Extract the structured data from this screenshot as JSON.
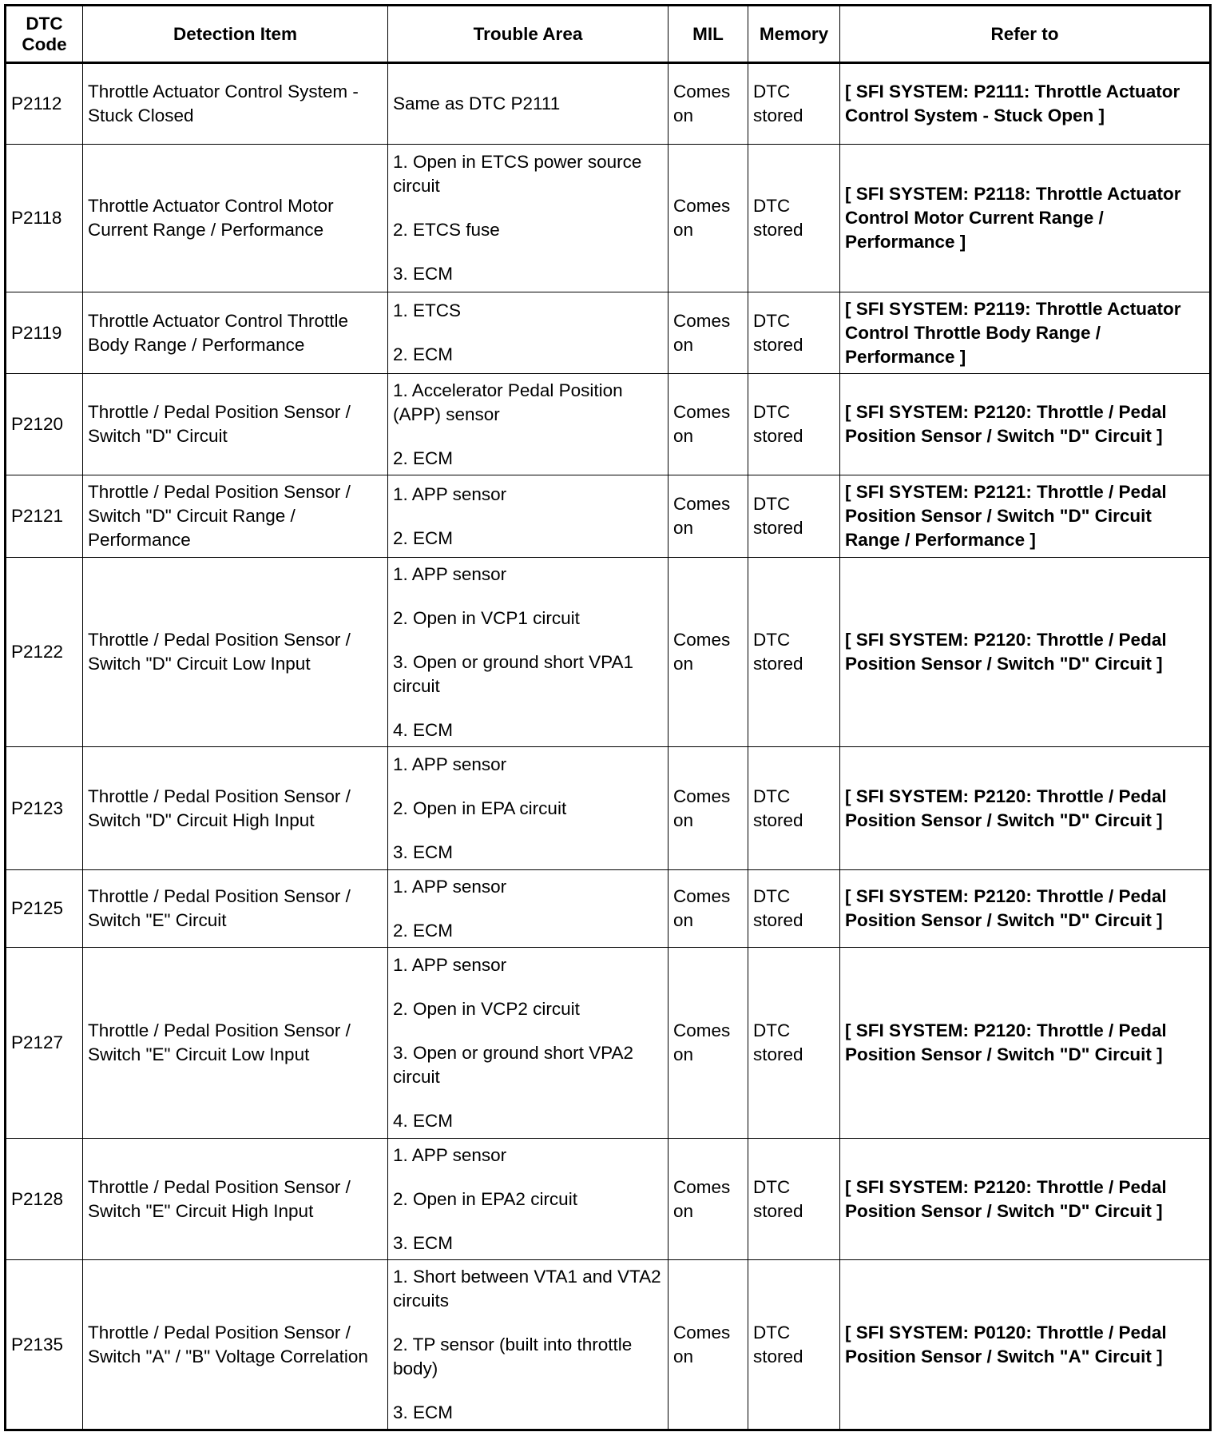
{
  "headers": [
    "DTC Code",
    "Detection Item",
    "Trouble Area",
    "MIL",
    "Memory",
    "Refer to"
  ],
  "rows": [
    {
      "code": "P2112",
      "item": "Throttle Actuator Control System - Stuck Closed",
      "trouble": [
        "Same as DTC P2111"
      ],
      "mil": "Comes on",
      "memory": "DTC stored",
      "refer": "[ SFI SYSTEM: P2111: Throttle Actuator Control System - Stuck Open ]"
    },
    {
      "code": "P2118",
      "item": "Throttle Actuator Control Motor Current Range / Performance",
      "trouble": [
        "1. Open in ETCS power source circuit",
        "2. ETCS fuse",
        "3. ECM"
      ],
      "mil": "Comes on",
      "memory": "DTC stored",
      "refer": "[ SFI SYSTEM: P2118: Throttle Actuator Control Motor Current Range / Performance ]"
    },
    {
      "code": "P2119",
      "item": "Throttle Actuator Control Throttle Body Range / Performance",
      "trouble": [
        "1. ETCS",
        "2. ECM"
      ],
      "mil": "Comes on",
      "memory": "DTC stored",
      "refer": "[ SFI SYSTEM: P2119: Throttle Actuator Control Throttle Body Range / Performance ]"
    },
    {
      "code": "P2120",
      "item": "Throttle / Pedal Position Sensor / Switch \"D\" Circuit",
      "trouble": [
        "1. Accelerator Pedal Position (APP) sensor",
        "2. ECM"
      ],
      "mil": "Comes on",
      "memory": "DTC stored",
      "refer": "[ SFI SYSTEM: P2120: Throttle / Pedal Position Sensor / Switch \"D\" Circuit ]"
    },
    {
      "code": "P2121",
      "item": "Throttle / Pedal Position Sensor / Switch \"D\" Circuit Range / Performance",
      "trouble": [
        "1. APP sensor",
        "2. ECM"
      ],
      "mil": "Comes on",
      "memory": "DTC stored",
      "refer": "[ SFI SYSTEM: P2121: Throttle / Pedal Position Sensor / Switch \"D\" Circuit Range / Performance ]"
    },
    {
      "code": "P2122",
      "item": "Throttle / Pedal Position Sensor / Switch \"D\" Circuit Low Input",
      "trouble": [
        "1. APP sensor",
        "2. Open in VCP1 circuit",
        "3. Open or ground short VPA1 circuit",
        "4. ECM"
      ],
      "mil": "Comes on",
      "memory": "DTC stored",
      "refer": "[ SFI SYSTEM: P2120: Throttle / Pedal Position Sensor / Switch \"D\" Circuit ]"
    },
    {
      "code": "P2123",
      "item": "Throttle / Pedal Position Sensor / Switch \"D\" Circuit High Input",
      "trouble": [
        "1. APP sensor",
        "2. Open in EPA circuit",
        "3. ECM"
      ],
      "mil": "Comes on",
      "memory": "DTC stored",
      "refer": "[ SFI SYSTEM: P2120: Throttle / Pedal Position Sensor / Switch \"D\" Circuit ]"
    },
    {
      "code": "P2125",
      "item": "Throttle / Pedal Position Sensor / Switch \"E\" Circuit",
      "trouble": [
        "1. APP sensor",
        "2. ECM"
      ],
      "mil": "Comes on",
      "memory": "DTC stored",
      "refer": "[ SFI SYSTEM: P2120: Throttle / Pedal Position Sensor / Switch \"D\" Circuit ]"
    },
    {
      "code": "P2127",
      "item": "Throttle / Pedal Position Sensor / Switch \"E\" Circuit Low Input",
      "trouble": [
        "1. APP sensor",
        "2. Open in VCP2 circuit",
        "3. Open or ground short VPA2 circuit",
        "4. ECM"
      ],
      "mil": "Comes on",
      "memory": "DTC stored",
      "refer": "[ SFI SYSTEM: P2120: Throttle / Pedal Position Sensor / Switch \"D\" Circuit ]"
    },
    {
      "code": "P2128",
      "item": "Throttle / Pedal Position Sensor / Switch \"E\" Circuit High Input",
      "trouble": [
        "1. APP sensor",
        "2. Open in EPA2 circuit",
        "3. ECM"
      ],
      "mil": "Comes on",
      "memory": "DTC stored",
      "refer": "[ SFI SYSTEM: P2120: Throttle / Pedal Position Sensor / Switch \"D\" Circuit ]"
    },
    {
      "code": "P2135",
      "item": "Throttle / Pedal Position Sensor / Switch \"A\" / \"B\" Voltage Correlation",
      "trouble": [
        "1. Short between VTA1 and VTA2 circuits",
        "2. TP sensor (built into throttle body)",
        "3. ECM"
      ],
      "mil": "Comes on",
      "memory": "DTC stored",
      "refer": "[ SFI SYSTEM: P0120: Throttle / Pedal Position Sensor / Switch \"A\" Circuit ]"
    }
  ]
}
